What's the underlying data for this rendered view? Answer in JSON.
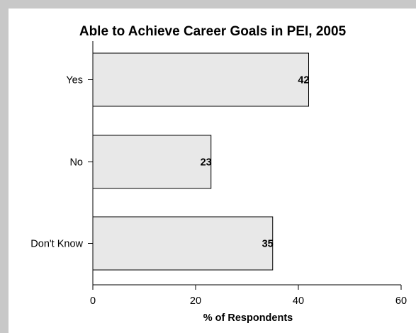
{
  "chart_data": {
    "type": "bar",
    "orientation": "horizontal",
    "title": "Able to Achieve Career Goals in PEI, 2005",
    "xlabel": "% of Respondents",
    "ylabel": "",
    "categories": [
      "Yes",
      "No",
      "Don't Know"
    ],
    "values": [
      42,
      23,
      35
    ],
    "data_labels": [
      "42",
      "23",
      "35"
    ],
    "xlim": [
      0,
      60
    ],
    "xticks": [
      0,
      20,
      40,
      60
    ],
    "grid": false,
    "legend": "none",
    "colors": {
      "bar_fill": "#e8e8e8",
      "bar_stroke": "#000000",
      "frame_background": "#ffffff",
      "page_background": "#c8c8c8"
    }
  }
}
